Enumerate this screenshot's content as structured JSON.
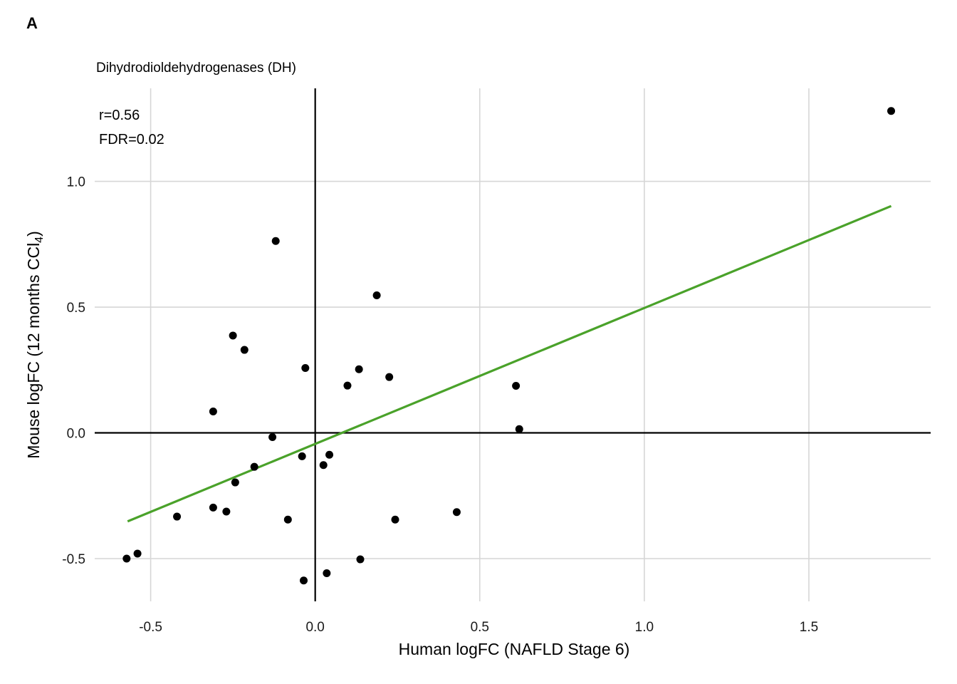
{
  "panel_label": "A",
  "chart_data": {
    "type": "scatter",
    "title": "Dihydrodioldehydrogenases (DH)",
    "xlabel": "Human logFC (NAFLD Stage 6)",
    "ylabel_parts": {
      "main": "Mouse logFC (12 months CCl",
      "sub": "4",
      "end": ")"
    },
    "xlim": [
      -0.67,
      1.87
    ],
    "ylim": [
      -0.67,
      1.37
    ],
    "x_ticks": [
      -0.5,
      0.0,
      0.5,
      1.0,
      1.5
    ],
    "x_tick_labels": [
      "-0.5",
      "0.0",
      "0.5",
      "1.0",
      "1.5"
    ],
    "y_ticks": [
      -0.5,
      0.0,
      0.5,
      1.0
    ],
    "y_tick_labels": [
      "-0.5",
      "0.0",
      "0.5",
      "1.0"
    ],
    "grid": true,
    "zero_lines": true,
    "annotations": {
      "r": "r=0.56",
      "fdr": "FDR=0.02"
    },
    "fit_line": {
      "color": "#4aa22a",
      "x": [
        -0.57,
        1.75
      ],
      "y": [
        -0.352,
        0.902
      ]
    },
    "point_color": "#000000",
    "points": [
      {
        "x": 1.75,
        "y": 1.28
      },
      {
        "x": -0.12,
        "y": 0.763
      },
      {
        "x": 0.187,
        "y": 0.547
      },
      {
        "x": -0.25,
        "y": 0.387
      },
      {
        "x": -0.215,
        "y": 0.33
      },
      {
        "x": -0.03,
        "y": 0.258
      },
      {
        "x": 0.133,
        "y": 0.253
      },
      {
        "x": 0.225,
        "y": 0.222
      },
      {
        "x": 0.098,
        "y": 0.188
      },
      {
        "x": 0.61,
        "y": 0.187
      },
      {
        "x": -0.31,
        "y": 0.085
      },
      {
        "x": 0.62,
        "y": 0.015
      },
      {
        "x": -0.13,
        "y": -0.017
      },
      {
        "x": 0.043,
        "y": -0.087
      },
      {
        "x": -0.04,
        "y": -0.093
      },
      {
        "x": 0.025,
        "y": -0.128
      },
      {
        "x": -0.185,
        "y": -0.135
      },
      {
        "x": -0.243,
        "y": -0.197
      },
      {
        "x": -0.31,
        "y": -0.297
      },
      {
        "x": -0.27,
        "y": -0.313
      },
      {
        "x": 0.43,
        "y": -0.315
      },
      {
        "x": -0.42,
        "y": -0.333
      },
      {
        "x": -0.083,
        "y": -0.345
      },
      {
        "x": 0.243,
        "y": -0.345
      },
      {
        "x": -0.54,
        "y": -0.48
      },
      {
        "x": -0.573,
        "y": -0.5
      },
      {
        "x": 0.137,
        "y": -0.503
      },
      {
        "x": 0.035,
        "y": -0.558
      },
      {
        "x": -0.035,
        "y": -0.587
      }
    ]
  }
}
